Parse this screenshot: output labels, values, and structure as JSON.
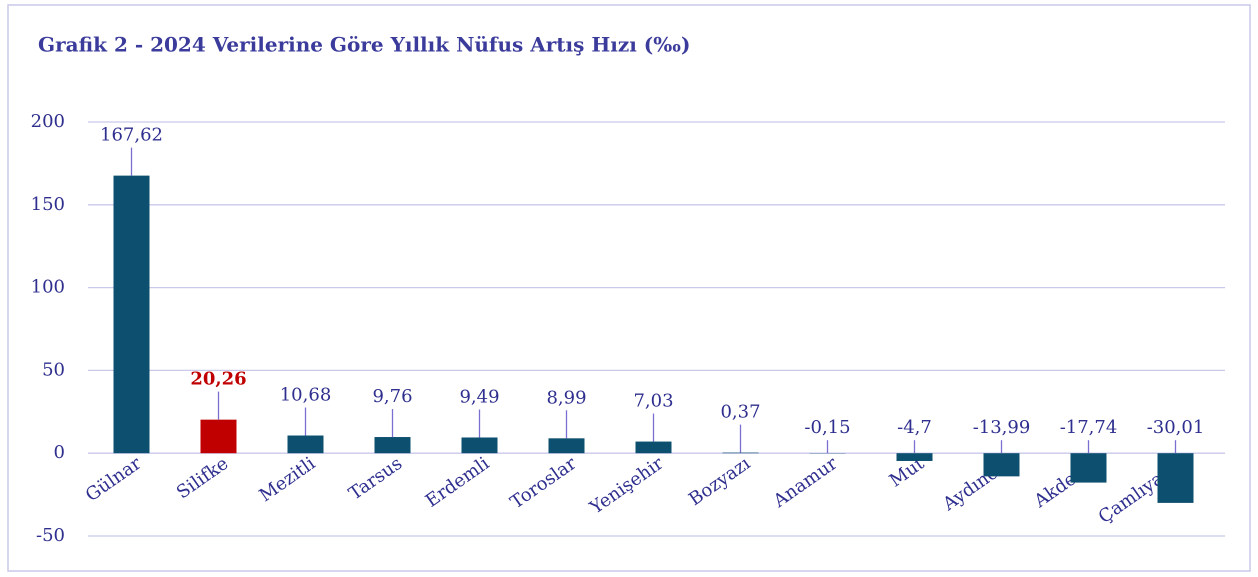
{
  "chart_data": {
    "type": "bar",
    "title": "Grafik 2 - 2024 Verilerine Göre Yıllık Nüfus Artış Hızı (‰)",
    "categories": [
      "Gülnar",
      "Silifke",
      "Mezitli",
      "Tarsus",
      "Erdemli",
      "Toroslar",
      "Yenişehir",
      "Bozyazı",
      "Anamur",
      "Mut",
      "Aydıncık",
      "Akdeniz",
      "Çamlıyayla"
    ],
    "values": [
      167.62,
      20.26,
      10.68,
      9.76,
      9.49,
      8.99,
      7.03,
      0.37,
      -0.15,
      -4.7,
      -13.99,
      -17.74,
      -30.01
    ],
    "value_labels": [
      "167,62",
      "20,26",
      "10,68",
      "9,76",
      "9,49",
      "8,99",
      "7,03",
      "0,37",
      "-0,15",
      "-4,7",
      "-13,99",
      "-17,74",
      "-30,01"
    ],
    "color": "#0d4f6e",
    "colors": [
      "#0d4f6e",
      "#c00000",
      "#0d4f6e",
      "#0d4f6e",
      "#0d4f6e",
      "#0d4f6e",
      "#0d4f6e",
      "#0d4f6e",
      "#0d4f6e",
      "#0d4f6e",
      "#0d4f6e",
      "#0d4f6e",
      "#0d4f6e"
    ],
    "ylim": [
      -50,
      200
    ],
    "yticks": [
      -50,
      0,
      50,
      100,
      150,
      200
    ],
    "grid": true
  }
}
